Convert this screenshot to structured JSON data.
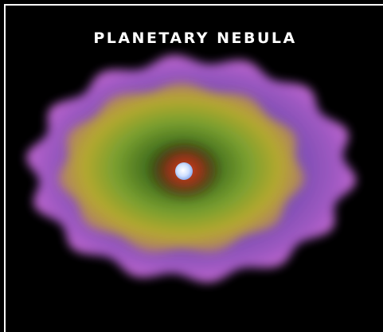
{
  "header": {
    "title": "PLANETARY NEBULA"
  }
}
